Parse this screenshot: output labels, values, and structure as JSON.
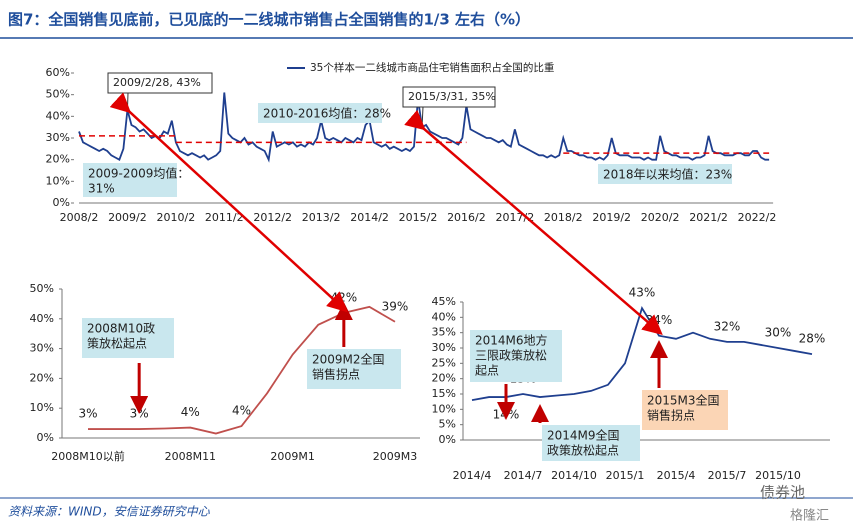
{
  "header": {
    "title": "图7：全国销售见底前，已见底的一二线城市销售占全国销售的1/3 左右（%）"
  },
  "chart_data": [
    {
      "type": "line",
      "categories": [
        "2008/2",
        null,
        null,
        null,
        null,
        null,
        null,
        null,
        null,
        null,
        null,
        null,
        "2009/2",
        null,
        null,
        null,
        null,
        null,
        null,
        null,
        null,
        null,
        null,
        null,
        "2010/2",
        null,
        null,
        null,
        null,
        null,
        null,
        null,
        null,
        null,
        null,
        null,
        "2011/2",
        null,
        null,
        null,
        null,
        null,
        null,
        null,
        null,
        null,
        null,
        null,
        "2012/2",
        null,
        null,
        null,
        null,
        null,
        null,
        null,
        null,
        null,
        null,
        null,
        "2013/2",
        null,
        null,
        null,
        null,
        null,
        null,
        null,
        null,
        null,
        null,
        null,
        "2014/2",
        null,
        null,
        null,
        null,
        null,
        null,
        null,
        null,
        null,
        null,
        null,
        "2015/2",
        null,
        null,
        null,
        null,
        null,
        null,
        null,
        null,
        null,
        null,
        null,
        "2016/2",
        null,
        null,
        null,
        null,
        null,
        null,
        null,
        null,
        null,
        null,
        null,
        "2017/2",
        null,
        null,
        null,
        null,
        null,
        null,
        null,
        null,
        null,
        null,
        null,
        "2018/2",
        null,
        null,
        null,
        null,
        null,
        null,
        null,
        null,
        null,
        null,
        null,
        "2019/2",
        null,
        null,
        null,
        null,
        null,
        null,
        null,
        null,
        null,
        null,
        null,
        "2020/2",
        null,
        null,
        null,
        null,
        null,
        null,
        null,
        null,
        null,
        null,
        null,
        "2021/2",
        null,
        null,
        null,
        null,
        null,
        null,
        null,
        null,
        null,
        null,
        null,
        "2022/2",
        null,
        null,
        null
      ],
      "series": [
        {
          "name": "35个样本一二线城市商品住宅销售面积占全国的比重",
          "color": "#1f3f8f",
          "values": [
            33,
            28,
            27,
            26,
            25,
            24,
            25,
            24,
            22,
            21,
            20,
            25,
            43,
            36,
            35,
            33,
            34,
            32,
            30,
            31,
            30,
            33,
            32,
            38,
            28,
            24,
            23,
            22,
            23,
            22,
            21,
            22,
            20,
            21,
            22,
            24,
            51,
            32,
            30,
            29,
            28,
            30,
            27,
            28,
            26,
            25,
            24,
            20,
            33,
            26,
            27,
            28,
            27,
            28,
            26,
            27,
            26,
            28,
            27,
            30,
            38,
            30,
            29,
            30,
            29,
            28,
            30,
            29,
            28,
            30,
            29,
            36,
            38,
            28,
            27,
            26,
            27,
            25,
            26,
            25,
            24,
            25,
            24,
            26,
            48,
            35,
            36,
            33,
            32,
            31,
            30,
            30,
            29,
            28,
            27,
            30,
            45,
            34,
            33,
            32,
            31,
            30,
            30,
            29,
            28,
            29,
            27,
            26,
            34,
            27,
            26,
            25,
            24,
            23,
            22,
            22,
            21,
            22,
            21,
            22,
            30,
            24,
            24,
            23,
            22,
            22,
            21,
            21,
            20,
            21,
            20,
            22,
            30,
            23,
            22,
            22,
            22,
            21,
            21,
            21,
            20,
            21,
            20,
            20,
            31,
            24,
            23,
            22,
            22,
            21,
            21,
            21,
            20,
            21,
            21,
            22,
            31,
            24,
            23,
            23,
            22,
            22,
            22,
            23,
            23,
            22,
            22,
            24,
            24,
            21,
            20,
            20
          ]
        }
      ],
      "ylim": [
        0,
        60
      ],
      "yticks": [
        {
          "value": 0,
          "label": "0%"
        },
        {
          "value": 10,
          "label": "10%"
        },
        {
          "value": 20,
          "label": "20%"
        },
        {
          "value": 30,
          "label": "30%"
        },
        {
          "value": 40,
          "label": "40%"
        },
        {
          "value": 50,
          "label": "50%"
        },
        {
          "value": 60,
          "label": "60%"
        }
      ],
      "legend": "top",
      "mean_lines": [
        {
          "text": [
            "2009-2009均值：",
            "31%"
          ],
          "value": 31,
          "from": "2008/2",
          "to": "2010/2"
        },
        {
          "text": [
            "2010-2016均值：28%"
          ],
          "value": 28,
          "from": "2010/2",
          "to": "2016/2"
        },
        {
          "text": [
            "2018年以来均值：23%"
          ],
          "value": 23,
          "from": "2018/2"
        }
      ],
      "callouts": [
        "2009/2/28, 43%",
        "2015/3/31, 35%"
      ]
    },
    {
      "type": "line",
      "categories": [
        "2008M10以前",
        null,
        null,
        null,
        "2008M11",
        null,
        null,
        null,
        "2009M1",
        null,
        null,
        null,
        "2009M3"
      ],
      "series": [
        {
          "color": "#c0504d",
          "values": [
            3,
            3,
            3,
            3.2,
            3.5,
            1.5,
            4,
            15,
            28,
            38,
            42,
            44,
            39
          ],
          "value_labels": [
            "3%",
            null,
            "3%",
            null,
            "4%",
            null,
            "4%",
            null,
            null,
            null,
            "42%",
            null,
            "39%"
          ]
        }
      ],
      "ylim": [
        0,
        50
      ],
      "yticks": [
        {
          "value": 0,
          "label": "0%"
        },
        {
          "value": 10,
          "label": "10%"
        },
        {
          "value": 20,
          "label": "20%"
        },
        {
          "value": 30,
          "label": "30%"
        },
        {
          "value": 40,
          "label": "40%"
        },
        {
          "value": 50,
          "label": "50%"
        }
      ],
      "annotations": [
        {
          "text": [
            "2008M10政",
            "策放松起点"
          ]
        },
        {
          "text": [
            "2009M2全国",
            "销售拐点"
          ]
        }
      ]
    },
    {
      "type": "line",
      "categories": [
        "2014/4",
        null,
        null,
        "2014/7",
        null,
        null,
        "2014/10",
        null,
        null,
        "2015/1",
        null,
        null,
        "2015/4",
        null,
        null,
        "2015/7",
        null,
        null,
        "2015/10",
        null,
        null
      ],
      "series": [
        {
          "color": "#1f3f8f",
          "values": [
            13,
            14,
            14,
            15,
            14,
            14.5,
            15,
            16,
            18,
            25,
            43,
            34,
            33,
            35,
            33,
            32,
            32,
            31,
            30,
            29,
            28
          ],
          "value_labels": [
            null,
            null,
            "14%",
            "15%",
            null,
            null,
            null,
            null,
            null,
            null,
            "43%",
            "34%",
            null,
            null,
            null,
            "32%",
            null,
            null,
            "30%",
            null,
            "28%"
          ]
        }
      ],
      "ylim": [
        0,
        45
      ],
      "yticks": [
        {
          "value": 0,
          "label": "0%"
        },
        {
          "value": 5,
          "label": "5%"
        },
        {
          "value": 10,
          "label": "10%"
        },
        {
          "value": 15,
          "label": "15%"
        },
        {
          "value": 20,
          "label": "20%"
        },
        {
          "value": 25,
          "label": "25%"
        },
        {
          "value": 30,
          "label": "30%"
        },
        {
          "value": 35,
          "label": "35%"
        },
        {
          "value": 40,
          "label": "40%"
        },
        {
          "value": 45,
          "label": "45%"
        }
      ],
      "annotations": [
        {
          "text": [
            "2014M6地方",
            "三限政策放松",
            "起点"
          ]
        },
        {
          "text": [
            "2014M9全国",
            "政策放松起点"
          ]
        },
        {
          "text": [
            "2015M3全国",
            "销售拐点"
          ]
        }
      ]
    }
  ],
  "source": "资料来源：WIND，安信证券研究中心",
  "watermark": [
    "债券池",
    "格隆汇"
  ]
}
